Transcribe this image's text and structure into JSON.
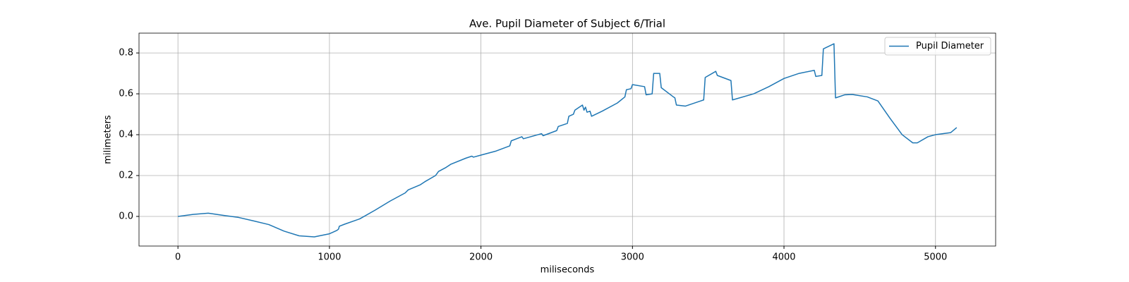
{
  "chart_data": {
    "type": "line",
    "title": "Ave. Pupil Diameter of Subject 6/Trial",
    "x_label": "miliseconds",
    "y_label": "milimeters",
    "x": [
      0,
      100,
      200,
      300,
      400,
      500,
      600,
      700,
      800,
      900,
      1000,
      1030,
      1050,
      1060,
      1065,
      1100,
      1200,
      1300,
      1400,
      1500,
      1520,
      1600,
      1630,
      1700,
      1720,
      1770,
      1800,
      1900,
      1940,
      1950,
      2000,
      2100,
      2190,
      2200,
      2270,
      2280,
      2400,
      2410,
      2500,
      2510,
      2570,
      2580,
      2610,
      2620,
      2650,
      2670,
      2680,
      2690,
      2700,
      2720,
      2730,
      2800,
      2900,
      2950,
      2960,
      2990,
      3000,
      3080,
      3090,
      3130,
      3140,
      3180,
      3190,
      3270,
      3280,
      3290,
      3350,
      3450,
      3470,
      3480,
      3550,
      3560,
      3650,
      3660,
      3800,
      3900,
      4000,
      4100,
      4200,
      4210,
      4250,
      4260,
      4330,
      4340,
      4400,
      4450,
      4550,
      4620,
      4700,
      4780,
      4850,
      4880,
      4950,
      5000,
      5100,
      5140
    ],
    "series": [
      {
        "name": "Pupil Diameter",
        "color": "#1f77b4",
        "values": [
          0,
          0.01,
          0.016,
          0.005,
          -0.005,
          -0.022,
          -0.04,
          -0.072,
          -0.095,
          -0.1,
          -0.085,
          -0.075,
          -0.068,
          -0.062,
          -0.048,
          -0.038,
          -0.012,
          0.03,
          0.075,
          0.115,
          0.13,
          0.155,
          0.17,
          0.2,
          0.22,
          0.24,
          0.255,
          0.285,
          0.295,
          0.29,
          0.3,
          0.32,
          0.345,
          0.37,
          0.39,
          0.38,
          0.405,
          0.395,
          0.42,
          0.44,
          0.455,
          0.49,
          0.5,
          0.52,
          0.535,
          0.545,
          0.52,
          0.535,
          0.51,
          0.515,
          0.49,
          0.515,
          0.555,
          0.585,
          0.62,
          0.625,
          0.645,
          0.635,
          0.595,
          0.6,
          0.7,
          0.7,
          0.63,
          0.585,
          0.58,
          0.545,
          0.54,
          0.565,
          0.57,
          0.68,
          0.71,
          0.69,
          0.665,
          0.57,
          0.6,
          0.635,
          0.675,
          0.7,
          0.715,
          0.685,
          0.69,
          0.82,
          0.845,
          0.58,
          0.595,
          0.597,
          0.585,
          0.565,
          0.48,
          0.4,
          0.36,
          0.36,
          0.39,
          0.4,
          0.41,
          0.435
        ]
      }
    ],
    "xlim": [
      -257,
      5397
    ],
    "ylim": [
      -0.145,
      0.897
    ],
    "xticks": [
      0,
      1000,
      2000,
      3000,
      4000,
      5000
    ],
    "yticks": [
      {
        "value": 0,
        "label": "0.0"
      },
      0.2,
      0.4,
      0.6,
      0.8
    ],
    "grid": true,
    "legend": "upper right"
  }
}
